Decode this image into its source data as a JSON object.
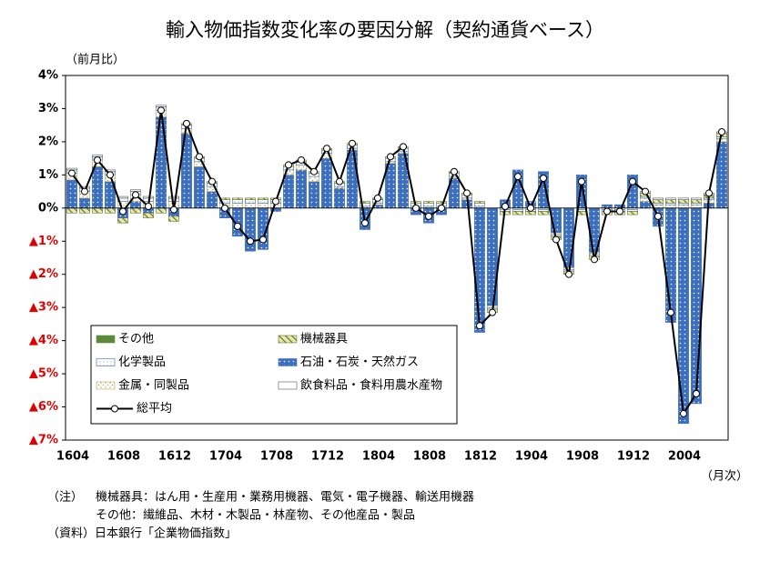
{
  "chart_data": {
    "type": "bar",
    "title": "輸入物価指数変化率の要因分解（契約通貨ベース）",
    "y_label": "（前月比）",
    "x_label": "（月次）",
    "categories": [
      "1604",
      null,
      null,
      null,
      "1608",
      null,
      null,
      null,
      "1612",
      null,
      null,
      null,
      "1704",
      null,
      null,
      null,
      "1708",
      null,
      null,
      null,
      "1712",
      null,
      null,
      null,
      "1804",
      null,
      null,
      null,
      "1808",
      null,
      null,
      null,
      "1812",
      null,
      null,
      null,
      "1904",
      null,
      null,
      null,
      "1908",
      null,
      null,
      null,
      "1912",
      null,
      null,
      null,
      "2004",
      null,
      null,
      null
    ],
    "ylim": [
      -7,
      4
    ],
    "yticks": [
      {
        "value": 4,
        "label": "4%"
      },
      {
        "value": 3,
        "label": "3%"
      },
      {
        "value": 2,
        "label": "2%"
      },
      {
        "value": 1,
        "label": "1%"
      },
      {
        "value": 0,
        "label": "0%"
      },
      {
        "value": -1,
        "label": "▲1%"
      },
      {
        "value": -2,
        "label": "▲2%"
      },
      {
        "value": -3,
        "label": "▲3%"
      },
      {
        "value": -4,
        "label": "▲4%"
      },
      {
        "value": -5,
        "label": "▲5%"
      },
      {
        "value": -6,
        "label": "▲6%"
      },
      {
        "value": -7,
        "label": "▲7%"
      }
    ],
    "series": [
      {
        "name": "石油・石炭・天然ガス",
        "color": "#3d6fc0",
        "values": [
          0.85,
          0.3,
          1.25,
          0.8,
          -0.3,
          0.2,
          -0.15,
          2.75,
          -0.25,
          2.25,
          1.25,
          0.5,
          -0.3,
          -0.85,
          -1.3,
          -1.25,
          -0.1,
          1.0,
          1.15,
          0.8,
          1.5,
          0.6,
          1.75,
          -0.65,
          0.1,
          1.35,
          1.65,
          -0.2,
          -0.45,
          -0.2,
          0.9,
          0.25,
          -3.75,
          -2.95,
          0.25,
          1.15,
          0.2,
          1.1,
          -0.75,
          -1.8,
          1.0,
          -1.35,
          0.1,
          0.1,
          1.0,
          0.2,
          -0.55,
          -3.45,
          -6.5,
          -5.9,
          0.15,
          2.0
        ]
      },
      {
        "name": "金属・同製品",
        "color": "#b8a860",
        "values": [
          0.2,
          0.2,
          0.2,
          0.2,
          0.2,
          0.2,
          0.2,
          0.2,
          0.2,
          0.15,
          0.15,
          0.15,
          0.15,
          0.15,
          0.15,
          0.15,
          0.15,
          0.15,
          0.15,
          0.15,
          0.15,
          0.05,
          0.05,
          0.05,
          0.05,
          0.05,
          0.05,
          0.05,
          0.05,
          0.05,
          0.05,
          0.05,
          0.05,
          -0.05,
          -0.05,
          -0.05,
          -0.05,
          -0.05,
          -0.05,
          -0.05,
          -0.05,
          -0.05,
          -0.05,
          -0.05,
          -0.05,
          0.1,
          0.1,
          0.1,
          0.1,
          0.1,
          0.1,
          0.1
        ]
      },
      {
        "name": "化学製品",
        "color": "#3d6fc0",
        "values": [
          0.1,
          0.1,
          0.1,
          0.1,
          0.1,
          0.1,
          0.1,
          0.1,
          0.1,
          0.1,
          0.1,
          0.1,
          0.1,
          0.1,
          0.1,
          0.1,
          0.1,
          0.1,
          0.1,
          0.1,
          0.1,
          0.1,
          0.1,
          0.1,
          0.1,
          0.1,
          0.1,
          0.1,
          0.1,
          0.1,
          0.1,
          0.1,
          0.1,
          -0.05,
          -0.05,
          -0.05,
          -0.05,
          -0.05,
          -0.05,
          -0.05,
          -0.05,
          -0.05,
          -0.05,
          -0.05,
          -0.05,
          0.05,
          0.05,
          0.05,
          0.05,
          0.05,
          0.05,
          0.05
        ]
      },
      {
        "name": "機械器具",
        "color": "#6a7a30",
        "values": [
          -0.15,
          -0.15,
          -0.15,
          -0.15,
          -0.15,
          -0.15,
          -0.15,
          -0.15,
          -0.15,
          0.05,
          0.05,
          0.05,
          0.05,
          0.05,
          0.05,
          0.05,
          0.05,
          0.05,
          0.05,
          0.05,
          0.05,
          0.05,
          0.05,
          0.05,
          0.05,
          0.05,
          0.05,
          0.05,
          0.05,
          0.05,
          0.05,
          0.05,
          0.05,
          -0.1,
          -0.1,
          -0.1,
          -0.1,
          -0.1,
          -0.1,
          -0.1,
          -0.1,
          -0.1,
          -0.1,
          -0.1,
          -0.1,
          0.1,
          0.1,
          0.1,
          0.1,
          0.1,
          0.1,
          0.1
        ]
      },
      {
        "name": "飲食料品・食料用農水産物",
        "color": "#555555",
        "values": [
          0.05,
          0.05,
          0.05,
          0.05,
          0.05,
          0.05,
          0.05,
          0.05,
          0.05,
          0,
          0,
          0,
          0,
          0,
          0,
          0,
          0,
          0,
          0,
          0,
          0,
          0,
          0,
          0,
          0,
          0,
          0,
          0,
          0,
          0,
          0,
          0,
          0,
          0,
          0,
          0,
          0,
          0,
          0,
          0,
          0,
          0,
          0,
          0,
          0,
          0.05,
          0.05,
          0.05,
          0.05,
          0.05,
          0.05,
          0.05
        ]
      },
      {
        "name": "その他",
        "color": "#5a8a3a",
        "values": [
          0,
          0,
          0,
          0,
          0,
          0,
          0,
          0,
          0,
          0,
          0,
          0,
          0,
          0,
          0,
          0,
          0,
          0,
          0,
          0,
          0,
          0,
          0,
          0,
          0,
          0,
          0,
          0,
          0,
          0,
          0,
          0,
          0,
          0,
          0,
          0,
          0,
          0,
          0,
          0,
          0,
          0,
          0,
          0,
          0,
          0,
          0,
          0,
          0,
          0,
          0,
          0
        ]
      },
      {
        "name": "総平均",
        "type": "line",
        "color": "#000000",
        "values": [
          1.05,
          0.5,
          1.45,
          1.0,
          -0.1,
          0.4,
          0.05,
          2.95,
          -0.05,
          2.55,
          1.55,
          0.8,
          0,
          -0.55,
          -1.0,
          -0.95,
          0.2,
          1.3,
          1.45,
          1.1,
          1.8,
          0.8,
          1.95,
          -0.45,
          0.3,
          1.55,
          1.85,
          0,
          -0.25,
          0,
          1.1,
          0.45,
          -3.55,
          -3.15,
          0.05,
          0.95,
          0,
          0.9,
          -0.95,
          -2.0,
          0.8,
          -1.55,
          -0.1,
          -0.1,
          0.8,
          0.5,
          -0.25,
          -3.15,
          -6.2,
          -5.6,
          0.45,
          2.3
        ]
      }
    ]
  },
  "notes": {
    "label": "（注）",
    "lines": [
      "機械器具：はん用・生産用・業務用機器、電気・電子機器、輸送用機器",
      "その他：繊維品、木材・木製品・林産物、その他産品・製品"
    ],
    "source": "（資料）日本銀行「企業物価指数」"
  }
}
